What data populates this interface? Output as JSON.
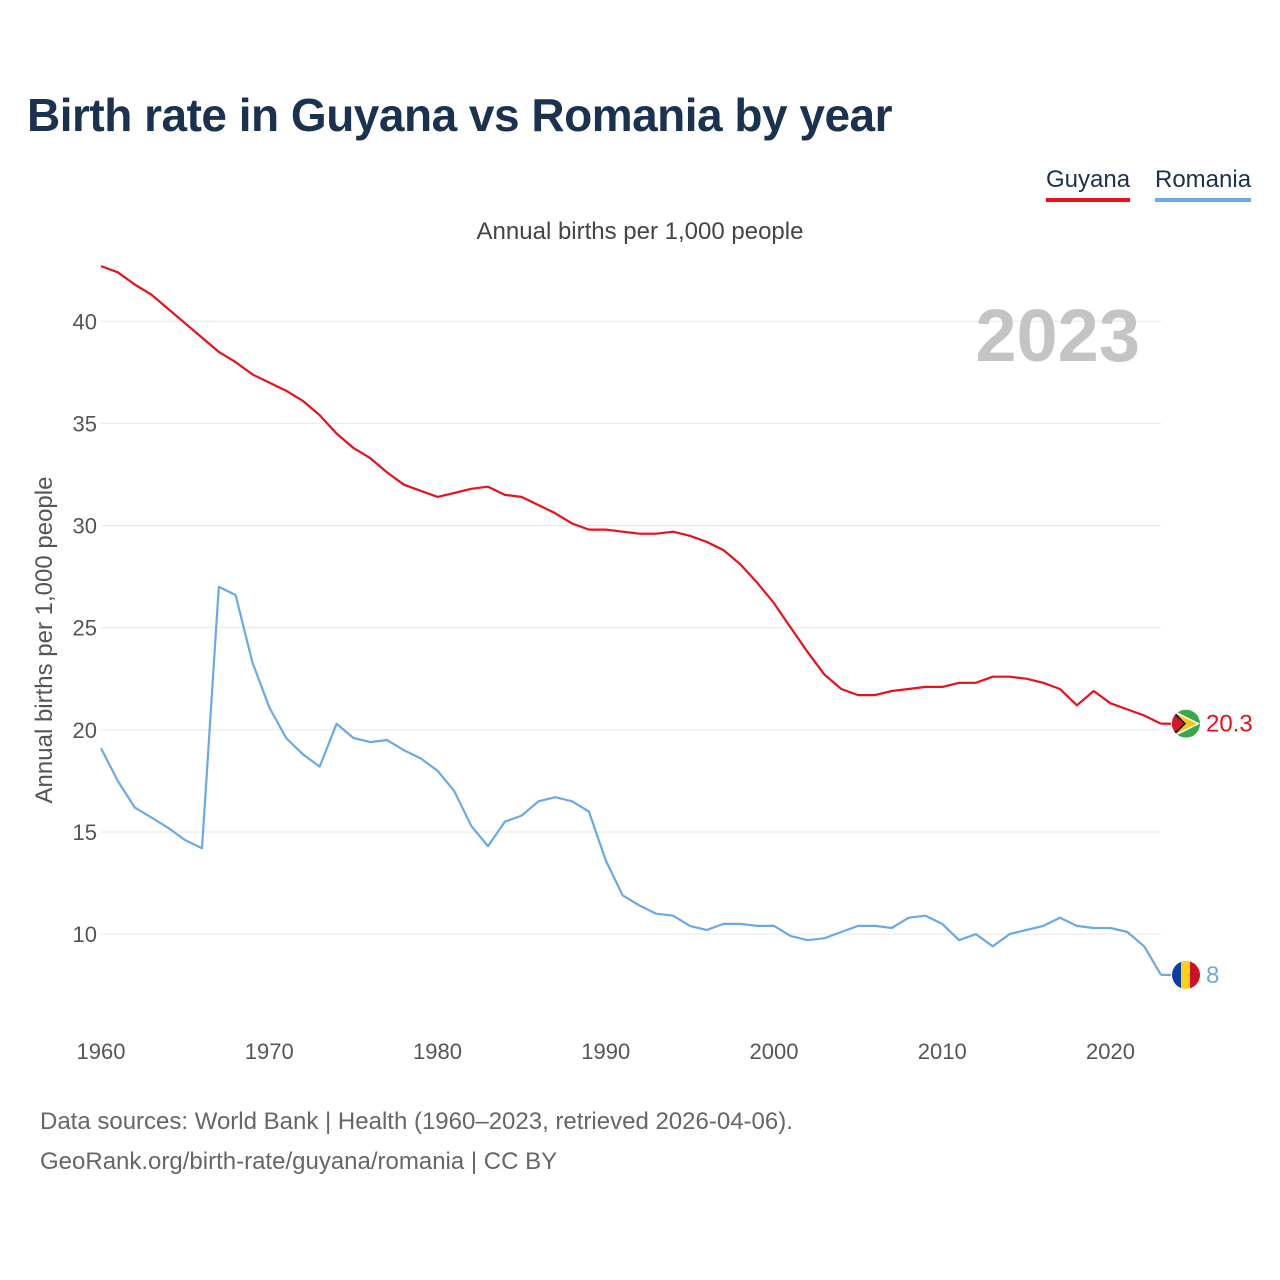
{
  "title": "Birth rate in Guyana vs Romania by year",
  "subtitle": "Annual births per 1,000 people",
  "legend": [
    {
      "name": "Guyana",
      "color": "#e8101a"
    },
    {
      "name": "Romania",
      "color": "#6aaae4"
    }
  ],
  "source": {
    "line1": "Data sources: World Bank | Health (1960–2023, retrieved 2026-04-06).",
    "line2": "GeoRank.org/birth-rate/guyana/romania | CC BY"
  },
  "chart_data": {
    "type": "line",
    "title": "Birth rate in Guyana vs Romania by year",
    "ylabel": "Annual births per 1,000 people",
    "xlabel": "",
    "year_label": "2023",
    "xlim": [
      1960,
      2023
    ],
    "ylim": [
      5.5,
      43
    ],
    "x_ticks": [
      1960,
      1970,
      1980,
      1990,
      2000,
      2010,
      2020
    ],
    "y_ticks": [
      10,
      15,
      20,
      25,
      30,
      35,
      40
    ],
    "x": [
      1960,
      1961,
      1962,
      1963,
      1964,
      1965,
      1966,
      1967,
      1968,
      1969,
      1970,
      1971,
      1972,
      1973,
      1974,
      1975,
      1976,
      1977,
      1978,
      1979,
      1980,
      1981,
      1982,
      1983,
      1984,
      1985,
      1986,
      1987,
      1988,
      1989,
      1990,
      1991,
      1992,
      1993,
      1994,
      1995,
      1996,
      1997,
      1998,
      1999,
      2000,
      2001,
      2002,
      2003,
      2004,
      2005,
      2006,
      2007,
      2008,
      2009,
      2010,
      2011,
      2012,
      2013,
      2014,
      2015,
      2016,
      2017,
      2018,
      2019,
      2020,
      2021,
      2022,
      2023
    ],
    "series": [
      {
        "name": "Guyana",
        "color": "#e8101a",
        "end_label": "20.3",
        "values": [
          42.7,
          42.4,
          41.8,
          41.3,
          40.6,
          39.9,
          39.2,
          38.5,
          38.0,
          37.4,
          37.0,
          36.6,
          36.1,
          35.4,
          34.5,
          33.8,
          33.3,
          32.6,
          32.0,
          31.7,
          31.4,
          31.6,
          31.8,
          31.9,
          31.5,
          31.4,
          31.0,
          30.6,
          30.1,
          29.8,
          29.8,
          29.7,
          29.6,
          29.6,
          29.7,
          29.5,
          29.2,
          28.8,
          28.1,
          27.2,
          26.2,
          25.0,
          23.8,
          22.7,
          22.0,
          21.7,
          21.7,
          21.9,
          22.0,
          22.1,
          22.1,
          22.3,
          22.3,
          22.6,
          22.6,
          22.5,
          22.3,
          22.0,
          21.2,
          21.9,
          21.3,
          21.0,
          20.7,
          20.3
        ]
      },
      {
        "name": "Romania",
        "color": "#6aaae4",
        "end_label": "8",
        "values": [
          19.1,
          17.5,
          16.2,
          15.7,
          15.2,
          14.6,
          14.2,
          27.0,
          26.6,
          23.3,
          21.1,
          19.6,
          18.8,
          18.2,
          20.3,
          19.6,
          19.4,
          19.5,
          19.0,
          18.6,
          18.0,
          17.0,
          15.3,
          14.3,
          15.5,
          15.8,
          16.5,
          16.7,
          16.5,
          16.0,
          13.6,
          11.9,
          11.4,
          11.0,
          10.9,
          10.4,
          10.2,
          10.5,
          10.5,
          10.4,
          10.4,
          9.9,
          9.7,
          9.8,
          10.1,
          10.4,
          10.4,
          10.3,
          10.8,
          10.9,
          10.5,
          9.7,
          10.0,
          9.4,
          10.0,
          10.2,
          10.4,
          10.8,
          10.4,
          10.3,
          10.3,
          10.1,
          9.4,
          8.0
        ]
      }
    ]
  }
}
